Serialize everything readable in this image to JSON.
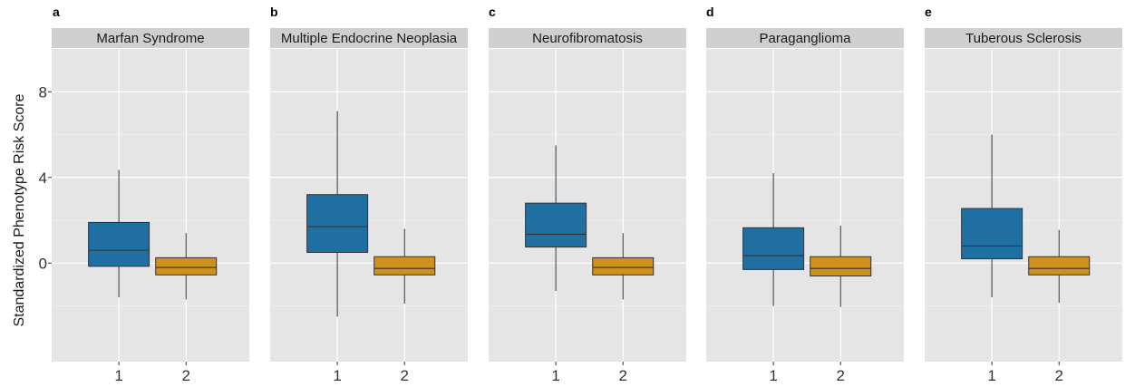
{
  "chart_data": {
    "type": "boxplot",
    "ylabel": "Standardized Phenotype Risk Score",
    "ylim": [
      -4.6,
      10.0
    ],
    "yticks": [
      0,
      4,
      8
    ],
    "ytick_labels": [
      "0",
      "4",
      "8"
    ],
    "categories": [
      "1",
      "2"
    ],
    "colors": {
      "1": "#1f6fa3",
      "2": "#d0901e"
    },
    "grid": true,
    "panels": [
      {
        "letter": "a",
        "title": "Marfan Syndrome",
        "boxes": [
          {
            "group": "1",
            "whisker_low": -1.6,
            "q1": -0.15,
            "median": 0.6,
            "q3": 1.9,
            "whisker_high": 4.35
          },
          {
            "group": "2",
            "whisker_low": -1.7,
            "q1": -0.55,
            "median": -0.2,
            "q3": 0.25,
            "whisker_high": 1.4
          }
        ]
      },
      {
        "letter": "b",
        "title": "Multiple Endocrine Neoplasia",
        "boxes": [
          {
            "group": "1",
            "whisker_low": -2.5,
            "q1": 0.5,
            "median": 1.7,
            "q3": 3.2,
            "whisker_high": 7.1
          },
          {
            "group": "2",
            "whisker_low": -1.9,
            "q1": -0.55,
            "median": -0.25,
            "q3": 0.3,
            "whisker_high": 1.6
          }
        ]
      },
      {
        "letter": "c",
        "title": "Neurofibromatosis",
        "boxes": [
          {
            "group": "1",
            "whisker_low": -1.3,
            "q1": 0.75,
            "median": 1.35,
            "q3": 2.8,
            "whisker_high": 5.5
          },
          {
            "group": "2",
            "whisker_low": -1.7,
            "q1": -0.55,
            "median": -0.2,
            "q3": 0.25,
            "whisker_high": 1.4
          }
        ]
      },
      {
        "letter": "d",
        "title": "Paraganglioma",
        "boxes": [
          {
            "group": "1",
            "whisker_low": -2.0,
            "q1": -0.3,
            "median": 0.35,
            "q3": 1.65,
            "whisker_high": 4.2
          },
          {
            "group": "2",
            "whisker_low": -2.05,
            "q1": -0.6,
            "median": -0.25,
            "q3": 0.3,
            "whisker_high": 1.75
          }
        ]
      },
      {
        "letter": "e",
        "title": "Tuberous Sclerosis",
        "boxes": [
          {
            "group": "1",
            "whisker_low": -1.6,
            "q1": 0.2,
            "median": 0.8,
            "q3": 2.55,
            "whisker_high": 6.0
          },
          {
            "group": "2",
            "whisker_low": -1.85,
            "q1": -0.55,
            "median": -0.25,
            "q3": 0.3,
            "whisker_high": 1.55
          }
        ]
      }
    ]
  }
}
